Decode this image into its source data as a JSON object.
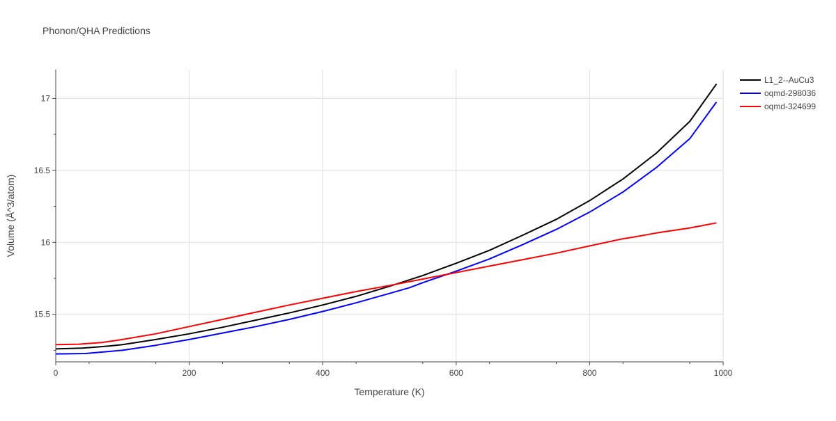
{
  "chart_data": {
    "type": "line",
    "title": "Phonon/QHA Predictions",
    "xlabel": "Temperature (K)",
    "ylabel": "Volume (Å^3/atom)",
    "xlim": [
      0,
      1000
    ],
    "ylim": [
      15.17,
      17.2
    ],
    "x_ticks": [
      0,
      200,
      400,
      600,
      800,
      1000
    ],
    "y_ticks": [
      15.5,
      16,
      16.5,
      17
    ],
    "x_tick_labels": [
      "0",
      "200",
      "400",
      "600",
      "800",
      "1000"
    ],
    "y_tick_labels": [
      "15.5",
      "16",
      "16.5",
      "17"
    ],
    "grid": true,
    "legend_position": "top-right",
    "series": [
      {
        "name": "L1_2--AuCu3",
        "color": "#000000",
        "points": [
          [
            0,
            15.26
          ],
          [
            40,
            15.265
          ],
          [
            80,
            15.28
          ],
          [
            100,
            15.29
          ],
          [
            150,
            15.325
          ],
          [
            200,
            15.365
          ],
          [
            250,
            15.41
          ],
          [
            300,
            15.46
          ],
          [
            350,
            15.51
          ],
          [
            400,
            15.565
          ],
          [
            450,
            15.625
          ],
          [
            500,
            15.695
          ],
          [
            550,
            15.77
          ],
          [
            600,
            15.855
          ],
          [
            650,
            15.945
          ],
          [
            700,
            16.05
          ],
          [
            750,
            16.16
          ],
          [
            800,
            16.29
          ],
          [
            850,
            16.44
          ],
          [
            900,
            16.62
          ],
          [
            950,
            16.84
          ],
          [
            990,
            17.1
          ]
        ]
      },
      {
        "name": "oqmd-298036",
        "color": "#0000ff",
        "points": [
          [
            0,
            15.225
          ],
          [
            45,
            15.228
          ],
          [
            100,
            15.25
          ],
          [
            150,
            15.285
          ],
          [
            200,
            15.325
          ],
          [
            250,
            15.37
          ],
          [
            300,
            15.415
          ],
          [
            350,
            15.465
          ],
          [
            400,
            15.52
          ],
          [
            450,
            15.58
          ],
          [
            500,
            15.645
          ],
          [
            530,
            15.685
          ],
          [
            550,
            15.72
          ],
          [
            600,
            15.8
          ],
          [
            650,
            15.885
          ],
          [
            700,
            15.985
          ],
          [
            750,
            16.09
          ],
          [
            800,
            16.21
          ],
          [
            850,
            16.35
          ],
          [
            900,
            16.52
          ],
          [
            950,
            16.72
          ],
          [
            990,
            16.975
          ]
        ]
      },
      {
        "name": "oqmd-324699",
        "color": "#ff0000",
        "points": [
          [
            0,
            15.29
          ],
          [
            35,
            15.293
          ],
          [
            70,
            15.305
          ],
          [
            100,
            15.325
          ],
          [
            150,
            15.365
          ],
          [
            200,
            15.415
          ],
          [
            250,
            15.465
          ],
          [
            300,
            15.515
          ],
          [
            350,
            15.565
          ],
          [
            400,
            15.612
          ],
          [
            450,
            15.658
          ],
          [
            500,
            15.7
          ],
          [
            550,
            15.745
          ],
          [
            600,
            15.79
          ],
          [
            650,
            15.835
          ],
          [
            700,
            15.88
          ],
          [
            750,
            15.925
          ],
          [
            800,
            15.975
          ],
          [
            850,
            16.025
          ],
          [
            870,
            16.04
          ],
          [
            900,
            16.065
          ],
          [
            950,
            16.1
          ],
          [
            990,
            16.135
          ]
        ]
      }
    ]
  }
}
